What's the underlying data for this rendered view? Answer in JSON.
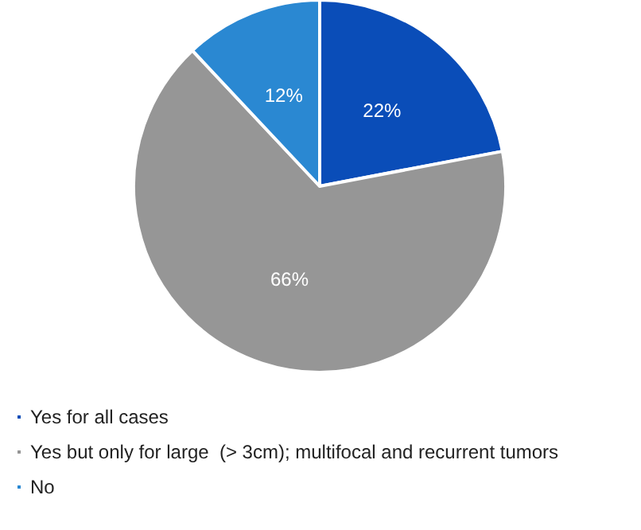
{
  "chart_data": {
    "type": "pie",
    "categories": [
      "Yes for all cases",
      "Yes but only for large  (> 3cm); multifocal and recurrent tumors",
      "No"
    ],
    "values": [
      22,
      66,
      12
    ],
    "colors": [
      "#0a4db8",
      "#969696",
      "#2a88d2"
    ],
    "value_labels": [
      "22%",
      "66%",
      "12%"
    ],
    "legend": "bottom left"
  }
}
